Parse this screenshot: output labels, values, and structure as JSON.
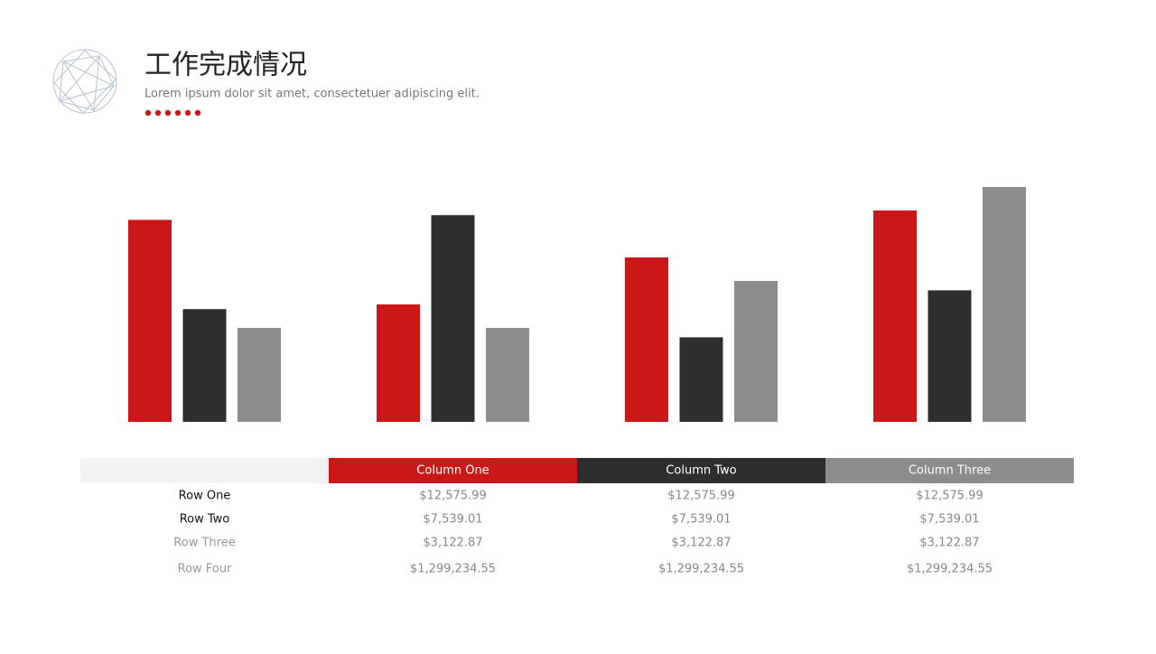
{
  "header": {
    "title": "工作完成情况",
    "subtitle": "Lorem ipsum dolor sit amet, consectetuer adipiscing elit."
  },
  "chart_data": {
    "type": "bar",
    "categories": [
      null,
      null,
      null,
      null
    ],
    "series": [
      {
        "color": "#cc1719",
        "values": [
          4.3,
          2.5,
          3.5,
          4.5
        ]
      },
      {
        "color": "#2e2e2e",
        "values": [
          2.4,
          4.4,
          1.8,
          2.8
        ]
      },
      {
        "color": "#8c8c8c",
        "values": [
          2.0,
          2.0,
          3.0,
          5.0
        ]
      }
    ],
    "ylim": [
      0,
      5
    ]
  },
  "table": {
    "columns": [
      "Column One",
      "Column Two",
      "Column Three"
    ],
    "rows": [
      {
        "label": "Row One",
        "cells": [
          "$12,575.99",
          "$12,575.99",
          "$12,575.99"
        ]
      },
      {
        "label": "Row Two",
        "cells": [
          "$7,539.01",
          "$7,539.01",
          "$7,539.01"
        ]
      },
      {
        "label": "Row Three",
        "cells": [
          "$3,122.87",
          "$3,122.87",
          "$3,122.87"
        ]
      },
      {
        "label": "Row Four",
        "cells": [
          "$1,299,234.55",
          "$1,299,234.55",
          "$1,299,234.55"
        ]
      }
    ]
  }
}
